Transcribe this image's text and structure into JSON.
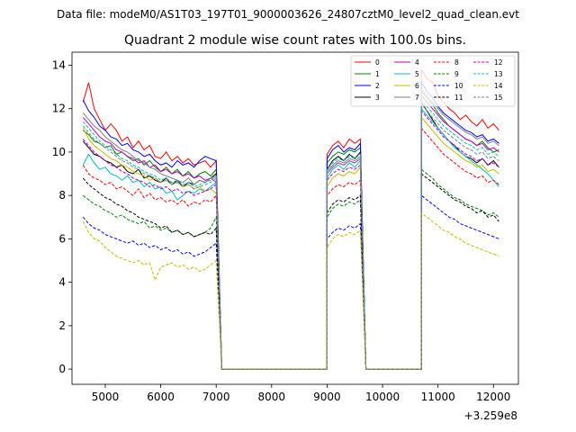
{
  "chart_data": {
    "type": "line",
    "suptitle": "Data file: modeM0/AS1T03_197T01_9000003626_24807cztM0_level2_quad_clean.evt",
    "title": "Quadrant 2 module wise count rates with 100.0s bins.",
    "xlabel": "",
    "ylabel": "",
    "x_offset_label": "+3.259e8",
    "xlim": [
      4400,
      12450
    ],
    "ylim": [
      -0.7,
      14.6
    ],
    "xticks": [
      5000,
      6000,
      7000,
      8000,
      9000,
      10000,
      11000,
      12000
    ],
    "yticks": [
      0,
      2,
      4,
      6,
      8,
      10,
      12,
      14
    ],
    "segments": [
      {
        "start": 4600,
        "end": 7000,
        "n": 25
      },
      {
        "start": 9000,
        "end": 9600,
        "n": 7
      },
      {
        "start": 10700,
        "end": 12100,
        "n": 15
      }
    ],
    "gaps": [
      [
        7000,
        7100,
        9000
      ],
      [
        9600,
        9700,
        10700
      ]
    ],
    "legend_location": "upper right",
    "series": [
      {
        "name": "0",
        "color": "#ff0000",
        "dash": "solid",
        "seg1": [
          12.3,
          13.2,
          12.0,
          11.5,
          11.0,
          11.3,
          11.0,
          10.5,
          10.7,
          10.2,
          10.5,
          10.1,
          10.3,
          9.8,
          9.7,
          10.0,
          9.6,
          9.8,
          9.5,
          9.7,
          9.4,
          9.5,
          9.6,
          9.3,
          9.6
        ],
        "seg2": [
          9.9,
          10.3,
          10.5,
          10.2,
          10.6,
          10.4,
          10.6
        ],
        "seg3": [
          13.8,
          13.4,
          13.2,
          12.6,
          12.3,
          12.0,
          11.8,
          11.5,
          11.7,
          11.4,
          11.2,
          11.5,
          11.1,
          11.3,
          11.0
        ]
      },
      {
        "name": "1",
        "color": "#008000",
        "dash": "solid",
        "seg1": [
          11.0,
          10.8,
          10.5,
          10.4,
          10.2,
          10.3,
          9.9,
          10.0,
          9.8,
          9.6,
          9.7,
          9.4,
          9.6,
          9.3,
          9.1,
          9.3,
          9.0,
          9.2,
          8.9,
          9.1,
          8.8,
          9.0,
          9.1,
          8.9,
          9.2
        ],
        "seg2": [
          9.5,
          9.8,
          10.0,
          9.9,
          10.1,
          10.0,
          10.2
        ],
        "seg3": [
          12.8,
          12.5,
          12.2,
          11.8,
          11.5,
          11.2,
          11.0,
          10.8,
          10.6,
          10.5,
          10.3,
          10.5,
          10.2,
          10.0,
          10.1
        ]
      },
      {
        "name": "2",
        "color": "#0000ff",
        "dash": "solid",
        "seg1": [
          12.4,
          11.9,
          11.6,
          11.2,
          11.0,
          10.7,
          10.6,
          10.3,
          10.4,
          10.1,
          10.0,
          9.8,
          9.9,
          9.6,
          9.4,
          9.5,
          9.3,
          9.6,
          9.4,
          9.5,
          9.3,
          9.6,
          9.8,
          9.7,
          9.6
        ],
        "seg2": [
          9.7,
          10.1,
          10.3,
          10.0,
          10.2,
          10.1,
          10.4
        ],
        "seg3": [
          13.2,
          12.8,
          12.5,
          12.1,
          11.8,
          11.6,
          11.4,
          11.2,
          11.0,
          10.9,
          10.7,
          10.8,
          10.5,
          10.6,
          10.4
        ]
      },
      {
        "name": "3",
        "color": "#000000",
        "dash": "solid",
        "seg1": [
          10.5,
          10.2,
          9.9,
          9.8,
          9.6,
          9.5,
          9.3,
          9.4,
          9.1,
          9.0,
          9.2,
          8.8,
          8.9,
          8.7,
          8.6,
          8.8,
          8.5,
          8.7,
          8.4,
          8.6,
          8.5,
          8.7,
          8.6,
          8.8,
          9.0
        ],
        "seg2": [
          9.2,
          9.6,
          9.8,
          9.6,
          9.9,
          9.7,
          10.0
        ],
        "seg3": [
          12.3,
          11.9,
          11.5,
          11.1,
          10.8,
          10.5,
          10.3,
          10.0,
          9.8,
          9.7,
          9.5,
          9.7,
          9.4,
          9.6,
          9.3
        ]
      },
      {
        "name": "4",
        "color": "#bf00bf",
        "dash": "solid",
        "seg1": [
          11.6,
          11.3,
          11.0,
          10.7,
          10.5,
          10.4,
          10.1,
          10.0,
          9.8,
          9.7,
          9.5,
          9.6,
          9.3,
          9.4,
          9.1,
          9.2,
          9.0,
          9.1,
          8.9,
          9.0,
          8.8,
          8.9,
          8.7,
          8.8,
          8.6
        ],
        "seg2": [
          9.0,
          9.3,
          9.5,
          9.4,
          9.6,
          9.5,
          9.7
        ],
        "seg3": [
          12.6,
          12.3,
          12.0,
          11.7,
          11.4,
          11.2,
          11.0,
          10.8,
          10.6,
          10.5,
          10.3,
          10.4,
          10.1,
          10.2,
          10.0
        ]
      },
      {
        "name": "5",
        "color": "#00bfbf",
        "dash": "solid",
        "seg1": [
          9.4,
          9.9,
          9.5,
          9.2,
          9.3,
          9.0,
          8.9,
          8.7,
          8.9,
          8.6,
          8.7,
          8.4,
          8.6,
          8.3,
          8.4,
          8.1,
          8.2,
          7.8,
          8.0,
          8.2,
          8.1,
          8.3,
          8.2,
          8.4,
          8.6
        ],
        "seg2": [
          8.8,
          9.2,
          9.4,
          9.2,
          9.5,
          9.3,
          9.6
        ],
        "seg3": [
          12.0,
          11.7,
          11.4,
          11.1,
          10.8,
          10.5,
          10.2,
          10.0,
          9.8,
          9.6,
          9.4,
          9.2,
          9.0,
          8.7,
          8.4
        ]
      },
      {
        "name": "6",
        "color": "#bfbf00",
        "dash": "solid",
        "seg1": [
          11.1,
          10.6,
          10.3,
          10.1,
          9.9,
          9.7,
          9.6,
          9.4,
          9.3,
          9.1,
          9.0,
          8.9,
          8.7,
          8.8,
          8.6,
          8.7,
          8.5,
          8.6,
          8.4,
          8.5,
          8.3,
          8.4,
          8.2,
          8.3,
          8.1
        ],
        "seg2": [
          8.4,
          8.8,
          9.0,
          8.9,
          9.1,
          9.0,
          9.3
        ],
        "seg3": [
          11.6,
          11.3,
          11.0,
          10.7,
          10.4,
          10.2,
          10.0,
          9.8,
          9.6,
          9.5,
          9.3,
          9.4,
          9.1,
          9.2,
          9.0
        ]
      },
      {
        "name": "7",
        "color": "#808080",
        "dash": "solid",
        "seg1": [
          11.8,
          11.5,
          11.2,
          11.0,
          10.7,
          10.5,
          10.3,
          10.1,
          10.0,
          9.8,
          9.6,
          9.5,
          9.3,
          9.2,
          9.0,
          8.9,
          8.8,
          8.7,
          8.6,
          8.8,
          8.5,
          8.7,
          8.6,
          8.8,
          8.9
        ],
        "seg2": [
          9.1,
          9.4,
          9.6,
          9.5,
          9.7,
          9.6,
          9.8
        ],
        "seg3": [
          12.9,
          12.6,
          12.3,
          12.0,
          11.7,
          11.5,
          11.3,
          11.1,
          10.9,
          10.8,
          10.6,
          10.7,
          10.4,
          10.5,
          10.3
        ]
      },
      {
        "name": "8",
        "color": "#ff0000",
        "dash": "dashed",
        "seg1": [
          9.4,
          9.0,
          8.8,
          8.7,
          8.5,
          8.6,
          8.3,
          8.4,
          8.2,
          8.0,
          8.3,
          7.9,
          8.1,
          7.8,
          7.9,
          7.7,
          7.8,
          7.6,
          7.8,
          7.5,
          7.7,
          7.6,
          7.8,
          7.7,
          8.0
        ],
        "seg2": [
          8.0,
          8.3,
          8.5,
          8.4,
          8.6,
          8.5,
          8.7
        ],
        "seg3": [
          11.1,
          10.8,
          10.5,
          10.2,
          9.9,
          9.7,
          9.5,
          9.3,
          9.1,
          9.0,
          8.8,
          8.9,
          8.6,
          8.7,
          8.5
        ]
      },
      {
        "name": "9",
        "color": "#008000",
        "dash": "dashed",
        "seg1": [
          8.0,
          7.8,
          7.6,
          7.5,
          7.3,
          7.2,
          7.0,
          7.1,
          6.9,
          6.8,
          6.7,
          6.8,
          6.5,
          6.6,
          6.4,
          6.5,
          6.3,
          6.4,
          6.2,
          6.3,
          6.1,
          6.2,
          6.3,
          6.5,
          7.0
        ],
        "seg2": [
          7.0,
          7.4,
          7.6,
          7.5,
          7.7,
          7.6,
          7.8
        ],
        "seg3": [
          9.2,
          9.0,
          8.8,
          8.5,
          8.3,
          8.1,
          7.9,
          7.8,
          7.6,
          7.5,
          7.4,
          7.3,
          7.1,
          7.2,
          7.0
        ]
      },
      {
        "name": "10",
        "color": "#0000ff",
        "dash": "dashed",
        "seg1": [
          7.0,
          6.7,
          6.5,
          6.4,
          6.2,
          6.1,
          6.0,
          5.9,
          5.8,
          5.9,
          5.7,
          5.8,
          5.6,
          5.7,
          5.5,
          5.6,
          5.4,
          5.5,
          5.3,
          5.4,
          5.2,
          5.3,
          5.4,
          5.6,
          5.8
        ],
        "seg2": [
          6.0,
          6.3,
          6.5,
          6.4,
          6.6,
          6.5,
          6.7
        ],
        "seg3": [
          8.0,
          7.8,
          7.6,
          7.4,
          7.2,
          7.0,
          6.9,
          6.7,
          6.6,
          6.5,
          6.4,
          6.3,
          6.2,
          6.1,
          6.0
        ]
      },
      {
        "name": "11",
        "color": "#000000",
        "dash": "dashed",
        "seg1": [
          8.8,
          8.5,
          8.3,
          8.1,
          7.9,
          7.8,
          7.6,
          7.5,
          7.3,
          7.2,
          7.0,
          6.9,
          6.8,
          6.7,
          6.5,
          6.6,
          6.3,
          6.4,
          6.2,
          6.3,
          6.1,
          6.2,
          6.3,
          6.2,
          6.5
        ],
        "seg2": [
          7.2,
          7.6,
          7.8,
          7.7,
          7.9,
          7.8,
          8.0
        ],
        "seg3": [
          9.0,
          8.8,
          8.6,
          8.4,
          8.2,
          8.0,
          7.8,
          7.7,
          7.5,
          7.4,
          7.2,
          7.3,
          7.0,
          7.1,
          6.8
        ]
      },
      {
        "name": "12",
        "color": "#bf00bf",
        "dash": "dashed",
        "seg1": [
          10.6,
          10.3,
          10.0,
          9.8,
          9.6,
          9.4,
          9.3,
          9.1,
          9.0,
          8.8,
          8.7,
          8.6,
          8.4,
          8.5,
          8.3,
          8.4,
          8.2,
          8.3,
          8.1,
          8.2,
          8.0,
          8.1,
          8.2,
          8.3,
          8.5
        ],
        "seg2": [
          8.7,
          9.0,
          9.2,
          9.1,
          9.3,
          9.2,
          9.4
        ],
        "seg3": [
          11.9,
          11.6,
          11.3,
          11.0,
          10.7,
          10.5,
          10.3,
          10.1,
          9.9,
          9.8,
          9.6,
          9.7,
          9.4,
          9.5,
          9.3
        ]
      },
      {
        "name": "13",
        "color": "#00bfbf",
        "dash": "dashed",
        "seg1": [
          11.4,
          11.1,
          10.8,
          10.5,
          10.3,
          10.1,
          9.9,
          9.7,
          9.6,
          9.4,
          9.3,
          9.1,
          9.0,
          8.9,
          8.7,
          8.8,
          8.6,
          8.7,
          8.5,
          8.6,
          8.4,
          8.5,
          8.6,
          8.7,
          8.9
        ],
        "seg2": [
          9.2,
          9.5,
          9.7,
          9.6,
          9.8,
          9.7,
          9.9
        ],
        "seg3": [
          12.4,
          12.1,
          11.8,
          11.5,
          11.2,
          11.0,
          10.8,
          10.6,
          10.4,
          10.3,
          10.1,
          10.2,
          9.9,
          10.0,
          9.8
        ]
      },
      {
        "name": "14",
        "color": "#bfbf00",
        "dash": "dashed",
        "seg1": [
          6.8,
          6.3,
          6.0,
          5.9,
          5.6,
          5.4,
          5.2,
          5.1,
          5.0,
          4.9,
          5.0,
          4.8,
          4.9,
          4.1,
          4.7,
          4.8,
          4.9,
          4.7,
          4.8,
          4.6,
          4.7,
          4.5,
          4.6,
          4.8,
          5.0
        ],
        "seg2": [
          5.6,
          6.0,
          6.2,
          6.1,
          6.3,
          6.2,
          6.4
        ],
        "seg3": [
          7.2,
          7.0,
          6.8,
          6.6,
          6.4,
          6.3,
          6.1,
          6.0,
          5.8,
          5.7,
          5.6,
          5.5,
          5.4,
          5.3,
          5.2
        ]
      },
      {
        "name": "15",
        "color": "#808080",
        "dash": "dashed",
        "seg1": [
          11.2,
          10.9,
          10.6,
          10.4,
          10.2,
          10.0,
          9.8,
          9.6,
          9.5,
          9.3,
          9.2,
          9.0,
          8.9,
          8.8,
          8.6,
          8.7,
          8.5,
          8.6,
          8.4,
          8.5,
          8.3,
          8.4,
          8.5,
          8.6,
          8.8
        ],
        "seg2": [
          9.0,
          9.3,
          9.5,
          9.4,
          9.6,
          9.5,
          9.7
        ],
        "seg3": [
          12.2,
          11.9,
          11.6,
          11.3,
          11.0,
          10.8,
          10.6,
          10.4,
          10.2,
          10.1,
          9.9,
          10.0,
          9.7,
          9.8,
          9.6
        ]
      }
    ]
  }
}
